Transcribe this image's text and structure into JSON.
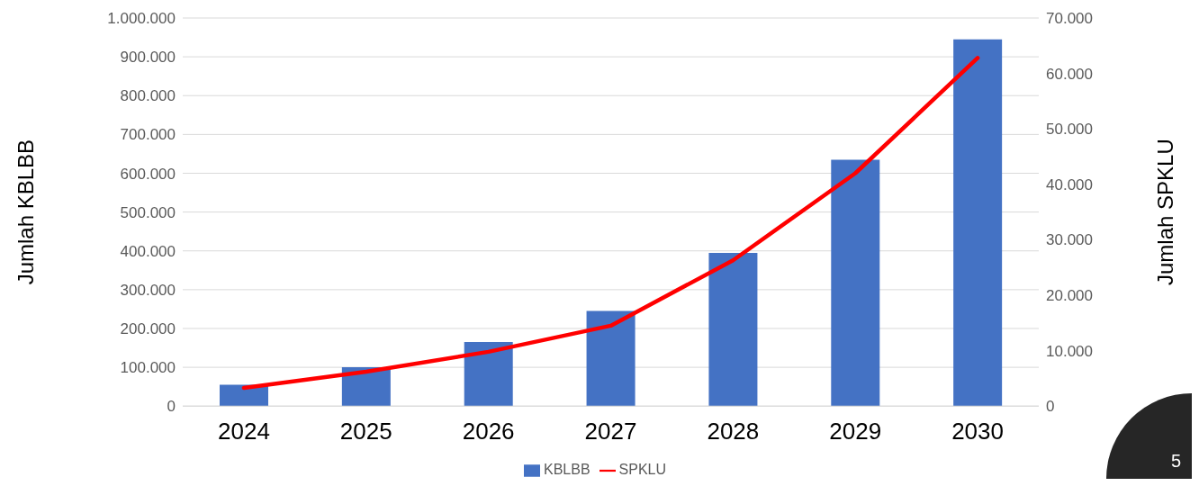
{
  "chart_data": {
    "type": "bar",
    "categories": [
      "2024",
      "2025",
      "2026",
      "2027",
      "2028",
      "2029",
      "2030"
    ],
    "ylabel": "Jumlah KBLBB",
    "y2label": "Jumlah SPKLU",
    "series": [
      {
        "name": "KBLBB",
        "color": "#4472c4",
        "values": [
          55000,
          100000,
          165000,
          245000,
          395000,
          635000,
          945000
        ]
      },
      {
        "name": "SPKLU",
        "type": "line",
        "axis": "y2",
        "color": "#ff0000",
        "marker": "none",
        "values": [
          3300,
          6200,
          9800,
          14500,
          26300,
          42000,
          62800
        ]
      }
    ],
    "ylim": [
      0,
      1000000
    ],
    "yticks": [
      {
        "value": 0,
        "label": "0"
      },
      {
        "value": 100000,
        "label": "100.000"
      },
      {
        "value": 200000,
        "label": "200.000"
      },
      {
        "value": 300000,
        "label": "300.000"
      },
      {
        "value": 400000,
        "label": "400.000"
      },
      {
        "value": 500000,
        "label": "500.000"
      },
      {
        "value": 600000,
        "label": "600.000"
      },
      {
        "value": 700000,
        "label": "700.000"
      },
      {
        "value": 800000,
        "label": "800.000"
      },
      {
        "value": 900000,
        "label": "900.000"
      },
      {
        "value": 1000000,
        "label": "1.000.000"
      }
    ],
    "y2lim": [
      0,
      70000
    ],
    "y2ticks": [
      {
        "value": 0,
        "label": "0"
      },
      {
        "value": 10000,
        "label": "10.000"
      },
      {
        "value": 20000,
        "label": "20.000"
      },
      {
        "value": 30000,
        "label": "30.000"
      },
      {
        "value": 40000,
        "label": "40.000"
      },
      {
        "value": 50000,
        "label": "50.000"
      },
      {
        "value": 60000,
        "label": "60.000"
      },
      {
        "value": 70000,
        "label": "70.000"
      }
    ],
    "grid": "y",
    "legend": "bottom",
    "annotations": [
      "5"
    ]
  }
}
